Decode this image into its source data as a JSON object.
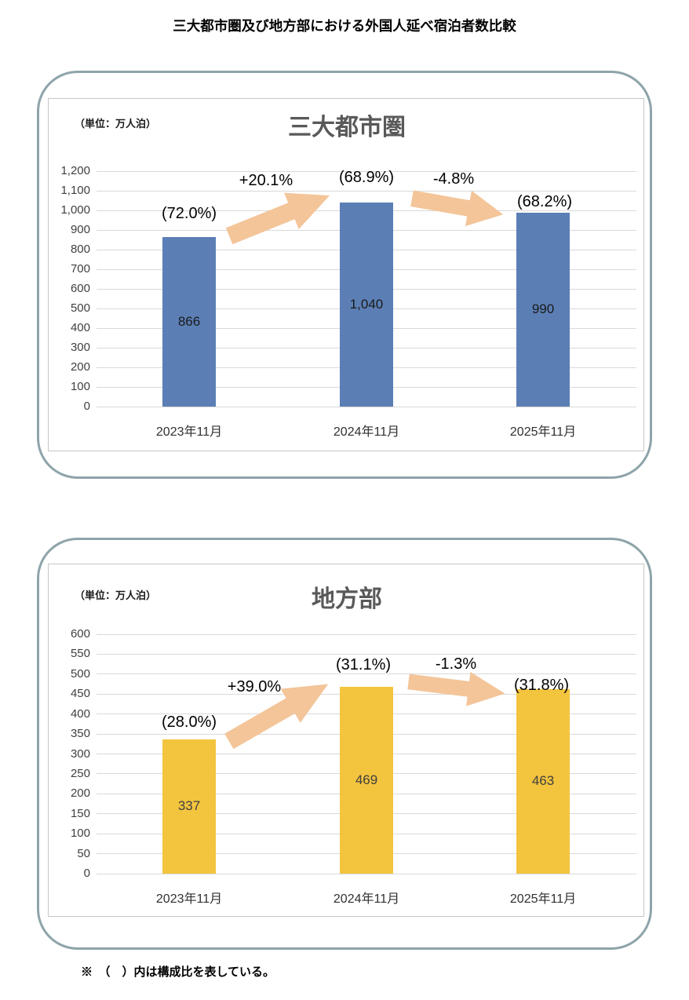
{
  "page": {
    "title": "三大都市圏及び地方部における外国人延べ宿泊者数比較",
    "footnote": "※　（　）内は構成比を表している。"
  },
  "colors": {
    "panel_border": "#8ea4aa",
    "plot_border": "#c6c6c6",
    "gridline": "#d9d9d9",
    "arrow": "#f3c599",
    "chart_title": "#595959",
    "metro_bar": "#5b7fb5",
    "regional_bar": "#f3c43e",
    "metro_value_text": "#1a1a1a",
    "regional_value_text": "#3f3f3f"
  },
  "chart_data": [
    {
      "type": "bar",
      "title": "三大都市圏",
      "unit_label": "（単位：万人泊）",
      "categories": [
        "2023年11月",
        "2024年11月",
        "2025年11月"
      ],
      "values": [
        866,
        1040,
        990
      ],
      "value_labels": [
        "866",
        "1,040",
        "990"
      ],
      "share_labels": [
        "(72.0%)",
        "(68.9%)",
        "(68.2%)"
      ],
      "change_labels": [
        "+20.1%",
        "-4.8%"
      ],
      "ylim": [
        0,
        1200
      ],
      "ytick_step": 100,
      "ytick_labels": [
        "0",
        "100",
        "200",
        "300",
        "400",
        "500",
        "600",
        "700",
        "800",
        "900",
        "1,000",
        "1,100",
        "1,200"
      ],
      "bar_color": "#5b7fb5",
      "value_text_color": "#1a1a1a",
      "grid": true,
      "legend": "none"
    },
    {
      "type": "bar",
      "title": "地方部",
      "unit_label": "（単位：万人泊）",
      "categories": [
        "2023年11月",
        "2024年11月",
        "2025年11月"
      ],
      "values": [
        337,
        469,
        463
      ],
      "value_labels": [
        "337",
        "469",
        "463"
      ],
      "share_labels": [
        "(28.0%)",
        "(31.1%)",
        "(31.8%)"
      ],
      "change_labels": [
        "+39.0%",
        "-1.3%"
      ],
      "ylim": [
        0,
        600
      ],
      "ytick_step": 50,
      "ytick_labels": [
        "0",
        "50",
        "100",
        "150",
        "200",
        "250",
        "300",
        "350",
        "400",
        "450",
        "500",
        "550",
        "600"
      ],
      "bar_color": "#f3c43e",
      "value_text_color": "#3f3f3f",
      "grid": true,
      "legend": "none"
    }
  ]
}
